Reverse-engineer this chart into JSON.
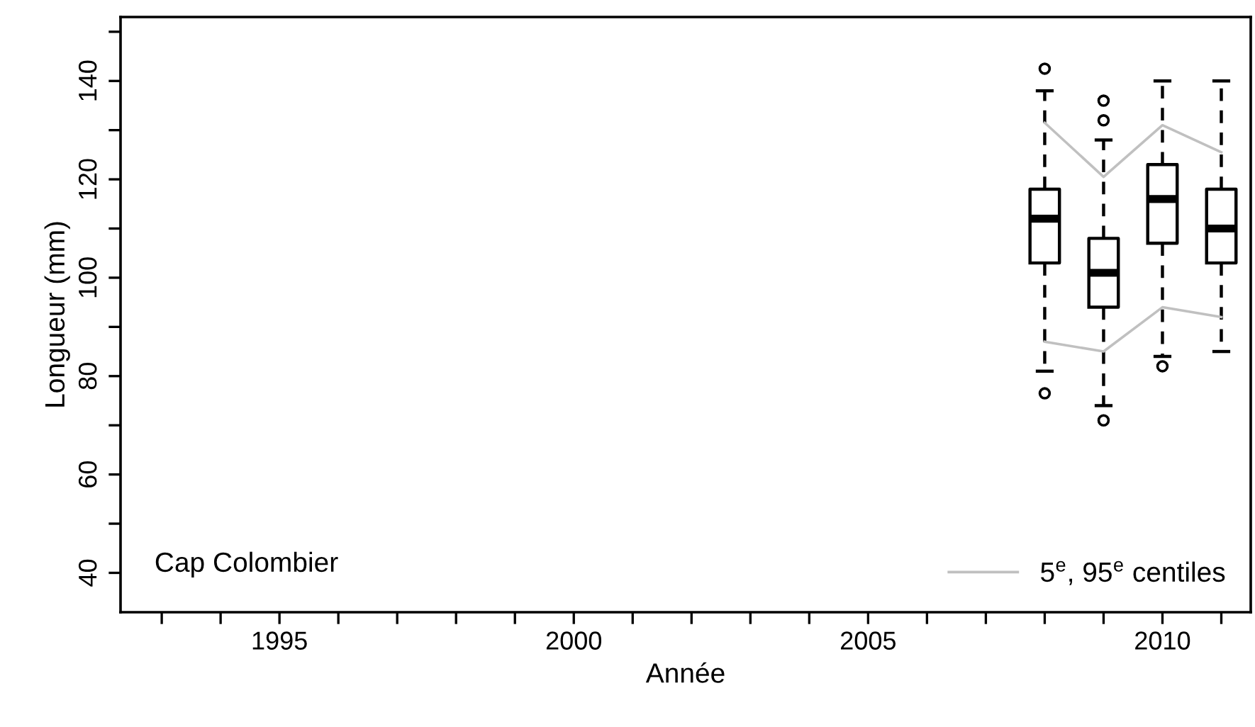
{
  "chart_data": {
    "type": "box",
    "xlabel": "Année",
    "ylabel": "Longueur (mm)",
    "x": [
      2008,
      2009,
      2010,
      2011
    ],
    "boxes": [
      {
        "low": 81,
        "q1": 103,
        "median": 112,
        "q3": 118,
        "high": 138,
        "outliers": [
          142.5,
          76.5
        ]
      },
      {
        "low": 74,
        "q1": 94,
        "median": 101,
        "q3": 108,
        "high": 128,
        "outliers": [
          136,
          132,
          71
        ]
      },
      {
        "low": 84,
        "q1": 107,
        "median": 116,
        "q3": 123,
        "high": 140,
        "outliers": [
          82
        ]
      },
      {
        "low": 85,
        "q1": 103,
        "median": 110,
        "q3": 118,
        "high": 140
      }
    ],
    "series": [
      {
        "name": "5$^{e}$, 95$^{e}$ centiles",
        "type": "line",
        "color": "#c0c0c0",
        "x": [
          2008,
          2009,
          2010,
          2011
        ],
        "values": [
          131.5,
          120.5,
          131,
          125.5
        ]
      },
      {
        "type": "line",
        "color": "#c0c0c0",
        "x": [
          2008,
          2009,
          2010,
          2011
        ],
        "values": [
          87,
          85,
          94,
          92
        ]
      }
    ],
    "annotations": [
      "Cap Colombier"
    ],
    "xlim": [
      1992.3,
      2011.5
    ],
    "ylim": [
      32,
      153
    ],
    "xticks": [
      {
        "value": 1993,
        "label": null
      },
      {
        "value": 1994,
        "label": null
      },
      1995,
      {
        "value": 1996,
        "label": null
      },
      {
        "value": 1997,
        "label": null
      },
      {
        "value": 1998,
        "label": null
      },
      {
        "value": 1999,
        "label": null
      },
      2000,
      {
        "value": 2001,
        "label": null
      },
      {
        "value": 2002,
        "label": null
      },
      {
        "value": 2003,
        "label": null
      },
      {
        "value": 2004,
        "label": null
      },
      2005,
      {
        "value": 2006,
        "label": null
      },
      {
        "value": 2007,
        "label": null
      },
      {
        "value": 2008,
        "label": null
      },
      {
        "value": 2009,
        "label": null
      },
      2010,
      {
        "value": 2011,
        "label": null
      }
    ],
    "yticks": [
      40,
      {
        "value": 50,
        "label": null
      },
      60,
      {
        "value": 70,
        "label": null
      },
      80,
      {
        "value": 90,
        "label": null
      },
      100,
      {
        "value": 110,
        "label": null
      },
      120,
      {
        "value": 130,
        "label": null
      },
      140,
      {
        "value": 150,
        "label": null
      }
    ],
    "legend": "bottom right",
    "grid": false,
    "line_style": "solid",
    "marker": "none"
  }
}
